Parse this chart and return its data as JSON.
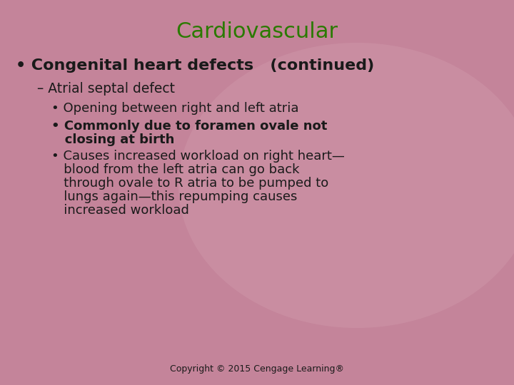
{
  "title": "Cardiovascular",
  "title_color": "#2a7a00",
  "title_fontsize": 22,
  "background_color": "#c4849a",
  "text_color": "#1a1a1a",
  "copyright": "Copyright © 2015 Cengage Learning®",
  "bullet1_bullet": "•",
  "bullet1_text": " Congenital heart defects   (continued)",
  "bullet1_fontsize": 16,
  "sub1": "– Atrial septal defect",
  "sub1_fontsize": 13.5,
  "subbullet1": "• Opening between right and left atria",
  "subbullet2_line1": "• Commonly due to foramen ovale not",
  "subbullet2_line2": "   closing at birth",
  "subbullet3_line1": "• Causes increased workload on right heart—",
  "subbullet3_line2": "   blood from the left atria can go back",
  "subbullet3_line3": "   through ovale to R atria to be pumped to",
  "subbullet3_line4": "   lungs again—this repumping causes",
  "subbullet3_line5": "   increased workload",
  "subbullet_fontsize": 13,
  "copyright_fontsize": 9,
  "fig_width": 7.2,
  "fig_height": 5.4,
  "dpi": 100
}
